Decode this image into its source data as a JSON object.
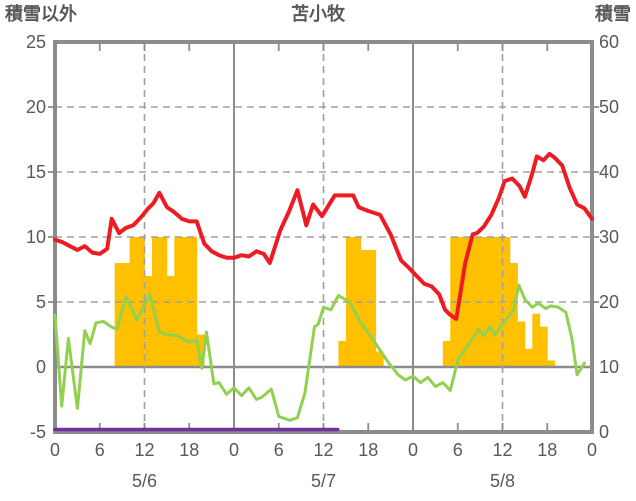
{
  "header": {
    "left_axis_title": "積雪以外",
    "station_title": "苫小牧",
    "right_axis_title": "積雪"
  },
  "colors": {
    "red_line": "#ed1c24",
    "green_line": "#92d050",
    "bars": "#ffc000",
    "purple_line": "#7030a0",
    "axis_frame": "#8c8c8c",
    "gridline": "#a0a0a0",
    "label_text": "#595959",
    "background": "#ffffff"
  },
  "chart_data": {
    "type": "line",
    "title": "苫小牧",
    "left_axis": {
      "label": "積雪以外",
      "ticks": [
        25,
        20,
        15,
        10,
        5,
        0,
        -5
      ],
      "range": [
        -5,
        25
      ]
    },
    "right_axis": {
      "label": "積雪",
      "ticks": [
        60,
        50,
        40,
        30,
        20,
        10,
        0
      ],
      "range": [
        0,
        60
      ]
    },
    "x_axis": {
      "range_hours": [
        0,
        72
      ],
      "tick_hours": [
        0,
        6,
        12,
        18,
        24,
        30,
        36,
        42,
        48,
        54,
        60,
        66,
        72
      ],
      "tick_labels": [
        "0",
        "6",
        "12",
        "18",
        "0",
        "6",
        "12",
        "18",
        "0",
        "6",
        "12",
        "18",
        "0"
      ],
      "dates": [
        {
          "label": "5/6",
          "hour": 12
        },
        {
          "label": "5/7",
          "hour": 36
        },
        {
          "label": "5/8",
          "hour": 60
        }
      ],
      "dashed_gridline_hours": [
        12,
        36,
        60
      ],
      "solid_gridline_hours": [
        24,
        48
      ]
    },
    "grid": {
      "dashed_levels": [
        20,
        15,
        10,
        5
      ],
      "zero_level": 0
    },
    "bars": {
      "id": "yellow-bars",
      "axis": "left",
      "bar_width_hours": 1,
      "points": [
        [
          8,
          8
        ],
        [
          9,
          8
        ],
        [
          10,
          10
        ],
        [
          11,
          10
        ],
        [
          12,
          7
        ],
        [
          13,
          10
        ],
        [
          14,
          10
        ],
        [
          15,
          7
        ],
        [
          16,
          10
        ],
        [
          17,
          10
        ],
        [
          18,
          10
        ],
        [
          19,
          2.5
        ],
        [
          38,
          2
        ],
        [
          39,
          10
        ],
        [
          40,
          10
        ],
        [
          41,
          9
        ],
        [
          42,
          9
        ],
        [
          43,
          1.2
        ],
        [
          52,
          2
        ],
        [
          53,
          10
        ],
        [
          54,
          10
        ],
        [
          55,
          10
        ],
        [
          56,
          10
        ],
        [
          57,
          10
        ],
        [
          58,
          10
        ],
        [
          59,
          10
        ],
        [
          60,
          10
        ],
        [
          61,
          8
        ],
        [
          62,
          3.5
        ],
        [
          63,
          1.4
        ],
        [
          64,
          4.1
        ],
        [
          65,
          3.1
        ],
        [
          66,
          0.5
        ]
      ]
    },
    "series": [
      {
        "id": "red-line",
        "axis": "left",
        "width": 4,
        "points": [
          [
            0,
            9.8
          ],
          [
            1,
            9.6
          ],
          [
            2,
            9.3
          ],
          [
            3,
            9.0
          ],
          [
            4,
            9.3
          ],
          [
            5,
            8.8
          ],
          [
            6,
            8.7
          ],
          [
            7,
            9.1
          ],
          [
            7.6,
            11.4
          ],
          [
            8.6,
            10.3
          ],
          [
            9.5,
            10.7
          ],
          [
            10.5,
            10.9
          ],
          [
            11.5,
            11.5
          ],
          [
            12.5,
            12.2
          ],
          [
            13.2,
            12.6
          ],
          [
            14,
            13.4
          ],
          [
            15,
            12.3
          ],
          [
            16,
            11.9
          ],
          [
            17,
            11.4
          ],
          [
            18,
            11.2
          ],
          [
            19,
            11.2
          ],
          [
            20,
            9.5
          ],
          [
            21,
            8.9
          ],
          [
            22,
            8.6
          ],
          [
            23,
            8.4
          ],
          [
            24,
            8.4
          ],
          [
            25,
            8.6
          ],
          [
            26,
            8.5
          ],
          [
            27,
            8.9
          ],
          [
            28,
            8.7
          ],
          [
            28.8,
            8.0
          ],
          [
            30.2,
            10.5
          ],
          [
            31.4,
            12.0
          ],
          [
            32.5,
            13.6
          ],
          [
            33.7,
            10.9
          ],
          [
            34.6,
            12.5
          ],
          [
            35.8,
            11.6
          ],
          [
            37.5,
            13.2
          ],
          [
            40,
            13.2
          ],
          [
            40.7,
            12.3
          ],
          [
            42,
            12.0
          ],
          [
            43.6,
            11.7
          ],
          [
            45,
            10.2
          ],
          [
            46.4,
            8.2
          ],
          [
            47.5,
            7.6
          ],
          [
            48.5,
            7.0
          ],
          [
            49.5,
            6.4
          ],
          [
            50.5,
            6.2
          ],
          [
            51.5,
            5.6
          ],
          [
            52.3,
            4.4
          ],
          [
            53,
            4.0
          ],
          [
            53.8,
            3.7
          ],
          [
            55,
            8.0
          ],
          [
            56,
            10.2
          ],
          [
            56.6,
            10.3
          ],
          [
            57.5,
            10.8
          ],
          [
            58.5,
            11.7
          ],
          [
            59.5,
            13.0
          ],
          [
            60.3,
            14.3
          ],
          [
            61.3,
            14.5
          ],
          [
            62.3,
            13.9
          ],
          [
            63,
            13.1
          ],
          [
            64,
            14.9
          ],
          [
            64.6,
            16.2
          ],
          [
            65.5,
            15.9
          ],
          [
            66.3,
            16.4
          ],
          [
            67,
            16.1
          ],
          [
            68,
            15.5
          ],
          [
            69,
            13.8
          ],
          [
            70,
            12.5
          ],
          [
            71,
            12.2
          ],
          [
            72,
            11.4
          ]
        ]
      },
      {
        "id": "green-line",
        "axis": "left",
        "width": 3,
        "points": [
          [
            0,
            4.0
          ],
          [
            0.9,
            -3.0
          ],
          [
            1.8,
            2.2
          ],
          [
            3,
            -3.2
          ],
          [
            4,
            2.8
          ],
          [
            4.7,
            1.8
          ],
          [
            5.5,
            3.4
          ],
          [
            6.5,
            3.5
          ],
          [
            7.5,
            3.1
          ],
          [
            8.3,
            2.9
          ],
          [
            9.5,
            5.4
          ],
          [
            11,
            3.6
          ],
          [
            12.7,
            5.6
          ],
          [
            14,
            2.7
          ],
          [
            15,
            2.5
          ],
          [
            16.5,
            2.4
          ],
          [
            18,
            1.9
          ],
          [
            19,
            2.1
          ],
          [
            19.7,
            -0.1
          ],
          [
            20.3,
            2.7
          ],
          [
            21.3,
            -1.3
          ],
          [
            22,
            -1.2
          ],
          [
            23,
            -2.1
          ],
          [
            24,
            -1.6
          ],
          [
            25,
            -2.2
          ],
          [
            26,
            -1.6
          ],
          [
            27,
            -2.5
          ],
          [
            27.8,
            -2.3
          ],
          [
            29,
            -1.7
          ],
          [
            30,
            -3.8
          ],
          [
            31.5,
            -4.1
          ],
          [
            32.5,
            -3.9
          ],
          [
            33.5,
            -2.0
          ],
          [
            34.8,
            3.1
          ],
          [
            35.3,
            3.3
          ],
          [
            36,
            4.6
          ],
          [
            37,
            4.4
          ],
          [
            38,
            5.5
          ],
          [
            39.5,
            5.0
          ],
          [
            41,
            3.4
          ],
          [
            43,
            1.8
          ],
          [
            44.5,
            0.5
          ],
          [
            46,
            -0.6
          ],
          [
            47,
            -1.0
          ],
          [
            48,
            -0.7
          ],
          [
            49,
            -1.2
          ],
          [
            50,
            -0.8
          ],
          [
            51,
            -1.5
          ],
          [
            52,
            -1.2
          ],
          [
            53,
            -1.8
          ],
          [
            54,
            0.5
          ],
          [
            55.5,
            1.8
          ],
          [
            56.8,
            2.9
          ],
          [
            57.5,
            2.4
          ],
          [
            58.3,
            3.1
          ],
          [
            59,
            2.5
          ],
          [
            60.3,
            3.5
          ],
          [
            61.5,
            4.4
          ],
          [
            62.2,
            6.3
          ],
          [
            63,
            5.2
          ],
          [
            64,
            4.6
          ],
          [
            64.8,
            4.9
          ],
          [
            65.8,
            4.5
          ],
          [
            66.5,
            4.7
          ],
          [
            67.5,
            4.6
          ],
          [
            68.5,
            4.2
          ],
          [
            69.3,
            2.2
          ],
          [
            70,
            -0.6
          ],
          [
            71,
            0.3
          ]
        ]
      },
      {
        "id": "purple-snow-depth-line",
        "axis": "right",
        "width": 3.5,
        "points": [
          [
            0,
            0
          ],
          [
            37.9,
            0
          ]
        ]
      }
    ]
  }
}
